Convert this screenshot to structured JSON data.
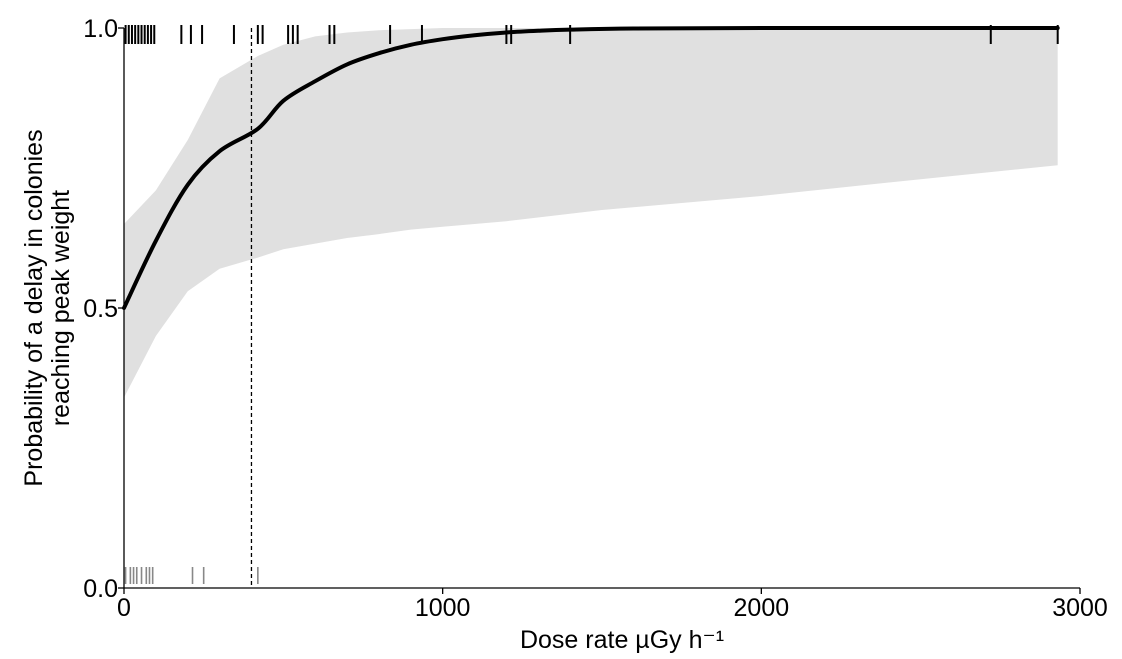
{
  "chart_data": {
    "type": "line",
    "title": "",
    "xlabel": "Dose rate µGy h⁻¹",
    "ylabel_lines": [
      "Probability of a delay in colonies",
      "reaching peak weight"
    ],
    "xlim": [
      0,
      3000
    ],
    "ylim": [
      0,
      1
    ],
    "xticks": [
      0,
      1000,
      2000,
      3000
    ],
    "xtick_labels": [
      "0",
      "1000",
      "2000",
      "3000"
    ],
    "yticks": [
      0,
      0.5,
      1
    ],
    "ytick_labels": [
      "0.0",
      "0.5",
      "1.0"
    ],
    "grid": false,
    "legend": "none",
    "fitted_curve": {
      "x": [
        0,
        100,
        200,
        300,
        420,
        500,
        600,
        700,
        800,
        900,
        1000,
        1100,
        1200,
        1300,
        1400,
        1600,
        2000,
        2500,
        2930
      ],
      "y": [
        0.5,
        0.62,
        0.72,
        0.78,
        0.82,
        0.87,
        0.905,
        0.935,
        0.955,
        0.97,
        0.98,
        0.987,
        0.992,
        0.995,
        0.997,
        0.999,
        1.0,
        1.0,
        1.0
      ]
    },
    "confidence_band": {
      "x": [
        0,
        100,
        200,
        300,
        420,
        500,
        600,
        700,
        800,
        900,
        1000,
        1200,
        1500,
        2000,
        2500,
        2930
      ],
      "lower": [
        0.34,
        0.45,
        0.53,
        0.57,
        0.59,
        0.605,
        0.615,
        0.625,
        0.632,
        0.64,
        0.645,
        0.655,
        0.675,
        0.7,
        0.73,
        0.755
      ],
      "upper": [
        0.65,
        0.71,
        0.8,
        0.91,
        0.95,
        0.97,
        0.985,
        0.992,
        0.996,
        0.998,
        1.0,
        1.0,
        1.0,
        1.0,
        1.0,
        1.0
      ]
    },
    "threshold_line": {
      "x": 400,
      "style": "dashed"
    },
    "rug_top_x": [
      5,
      15,
      25,
      35,
      45,
      55,
      65,
      75,
      85,
      95,
      180,
      210,
      245,
      345,
      420,
      435,
      515,
      530,
      545,
      645,
      660,
      835,
      935,
      1200,
      1215,
      1400,
      2720,
      2930
    ],
    "rug_bottom_x": [
      5,
      20,
      30,
      40,
      55,
      70,
      80,
      90,
      215,
      250,
      420
    ],
    "colors": {
      "curve": "#000000",
      "band": "#e0e0e0",
      "rug_top": "#000000",
      "rug_bottom": "#888888"
    }
  }
}
